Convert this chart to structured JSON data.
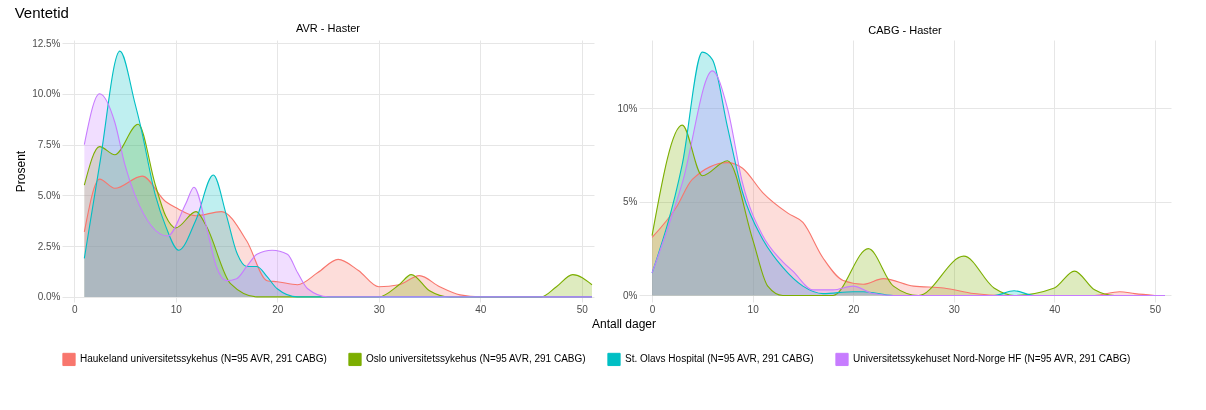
{
  "chart_data": [
    {
      "type": "area",
      "title": "Ventetid",
      "subtitle": "AVR - Haster",
      "xlabel": "Antall dager",
      "ylabel": "Prosent",
      "xlim": [
        -1.2,
        51.2
      ],
      "ylim": [
        -0.25,
        12.65
      ],
      "xticks": [
        0,
        10,
        20,
        30,
        40,
        50
      ],
      "yticks": [
        {
          "value": 0,
          "label": "0.0%"
        },
        {
          "value": 2.5,
          "label": "2.5%"
        },
        {
          "value": 5,
          "label": "5.0%"
        },
        {
          "value": 7.5,
          "label": "7.5%"
        },
        {
          "value": 10,
          "label": "10.0%"
        },
        {
          "value": 12.5,
          "label": "12.5%"
        }
      ],
      "grid": true,
      "legend": "bottom",
      "series": [
        {
          "name": "Haukeland universitetssykehus (N=95 AVR, 291 CABG)",
          "color": "#f8766d",
          "x": [
            1,
            2.5,
            4,
            6.7,
            9,
            10,
            12,
            14.5,
            17,
            19,
            20,
            22,
            24,
            26,
            28,
            30,
            32,
            34,
            36,
            38,
            40,
            51
          ],
          "values": [
            3.2,
            5.8,
            5.35,
            5.95,
            4.7,
            4.4,
            4.0,
            4.2,
            2.75,
            0.8,
            0.75,
            0.6,
            1.2,
            1.85,
            1.3,
            0.5,
            0.6,
            1.05,
            0.5,
            0.1,
            0,
            0
          ]
        },
        {
          "name": "Oslo universitetssykehus (N=95 AVR, 291 CABG)",
          "color": "#7cae00",
          "x": [
            1,
            2.5,
            4,
            6.3,
            8,
            9,
            10,
            12,
            13,
            15.4,
            18,
            30,
            32,
            33.2,
            35,
            37,
            46,
            47.5,
            49.1,
            51
          ],
          "values": [
            5.5,
            7.4,
            7.0,
            8.5,
            5.5,
            4.0,
            3.4,
            4.2,
            3.5,
            0.65,
            0,
            0,
            0.6,
            1.1,
            0.3,
            0,
            0,
            0.5,
            1.1,
            0.6
          ]
        },
        {
          "name": "St. Olavs Hospital (N=95 AVR, 291 CABG)",
          "color": "#00bfc4",
          "x": [
            1,
            2.5,
            4.5,
            6,
            6.5,
            8,
            9,
            10.3,
            12,
            13.7,
            15,
            16,
            17,
            18,
            19,
            20,
            22,
            51
          ],
          "values": [
            1.9,
            6.5,
            12.1,
            9.5,
            8.5,
            5,
            3.5,
            2.3,
            3.8,
            6.0,
            4.0,
            2.2,
            1.5,
            1.5,
            1.0,
            0.4,
            0,
            0
          ]
        },
        {
          "name": "Universitetssykehuset Nord-Norge HF (N=95 AVR, 291 CABG)",
          "color": "#c77cff",
          "x": [
            1,
            2.5,
            4,
            5,
            6,
            9.2,
            11,
            11.8,
            13,
            14,
            15,
            16,
            17,
            18,
            19.5,
            21,
            22,
            23,
            25,
            51
          ],
          "values": [
            7.5,
            10.0,
            8.6,
            6.5,
            5.0,
            3.0,
            4.6,
            5.4,
            3.5,
            1.5,
            0.8,
            0.9,
            1.5,
            2.1,
            2.3,
            2.1,
            1.2,
            0.4,
            0,
            0
          ]
        }
      ]
    },
    {
      "type": "area",
      "title": "CABG - Haster",
      "xlim": [
        -1.3,
        51.6
      ],
      "ylim": [
        -0.35,
        13.65
      ],
      "xticks": [
        0,
        10,
        20,
        30,
        40,
        50
      ],
      "yticks": [
        {
          "value": 0,
          "label": "0%"
        },
        {
          "value": 5,
          "label": "5%"
        },
        {
          "value": 10,
          "label": "10%"
        }
      ],
      "grid": true,
      "series": [
        {
          "name": "Haukeland universitetssykehus (N=95 AVR, 291 CABG)",
          "color": "#f8766d",
          "x": [
            0,
            2.4,
            4,
            7.5,
            9,
            11,
            13.5,
            15,
            17,
            19,
            21,
            23,
            26,
            29,
            32,
            35,
            44,
            46.5,
            48,
            50
          ],
          "values": [
            3.1,
            4.7,
            6.2,
            7.1,
            6.8,
            5.5,
            4.4,
            3.9,
            2.0,
            0.8,
            0.6,
            0.9,
            0.5,
            0.4,
            0.1,
            0,
            0,
            0.2,
            0.1,
            0
          ]
        },
        {
          "name": "Oslo universitetssykehus (N=95 AVR, 291 CABG)",
          "color": "#7cae00",
          "x": [
            0,
            3,
            5,
            7.5,
            10,
            11.5,
            13,
            18,
            21.5,
            24,
            26.5,
            31,
            34,
            36,
            40,
            42,
            44,
            46,
            51
          ],
          "values": [
            3.2,
            9.1,
            6.4,
            7.2,
            3,
            0.5,
            0,
            0,
            2.5,
            0.5,
            0,
            2.1,
            0.4,
            0,
            0.4,
            1.3,
            0.3,
            0,
            0
          ]
        },
        {
          "name": "St. Olavs Hospital (N=95 AVR, 291 CABG)",
          "color": "#00bfc4",
          "x": [
            0,
            3,
            5,
            6,
            7.5,
            9,
            11,
            13,
            15,
            17,
            20,
            21,
            24,
            34,
            36,
            38,
            51
          ],
          "values": [
            1.2,
            7,
            13.0,
            12.6,
            9,
            5.5,
            3,
            1.5,
            0.5,
            0.1,
            0.2,
            0.2,
            0,
            0,
            0.25,
            0,
            0
          ]
        },
        {
          "name": "Universitetssykehuset Nord-Norge HF (N=95 AVR, 291 CABG)",
          "color": "#c77cff",
          "x": [
            0,
            3,
            6,
            7.5,
            9,
            11,
            13,
            14,
            16,
            18,
            20,
            22,
            24,
            51
          ],
          "values": [
            1.2,
            6,
            12.0,
            10,
            6.0,
            3.2,
            1.8,
            1.3,
            0.3,
            0.3,
            0.5,
            0.1,
            0,
            0
          ]
        }
      ]
    }
  ]
}
